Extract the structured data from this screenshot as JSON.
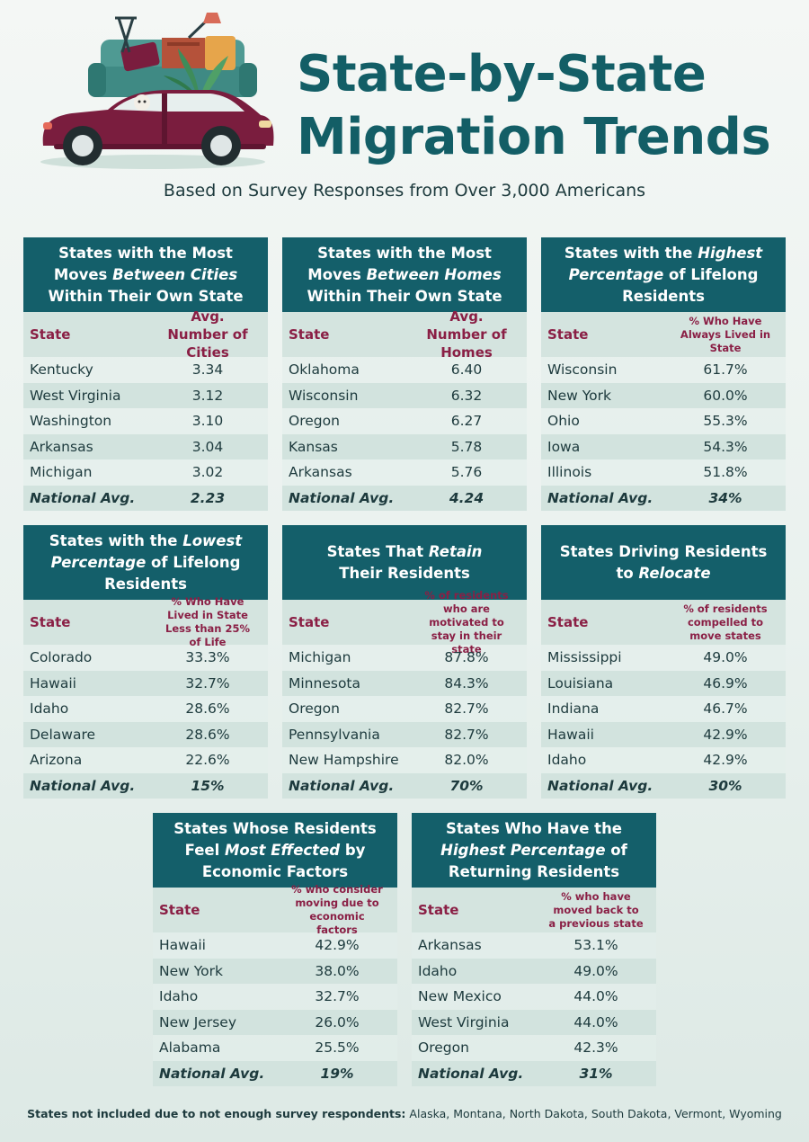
{
  "header": {
    "title_line1": "State-by-State",
    "title_line2": "Migration Trends",
    "subtitle": "Based on Survey Responses from Over 3,000 Americans"
  },
  "colors": {
    "teal": "#145f6a",
    "accent": "#8a1f45",
    "car": "#7a1d3e"
  },
  "tables": [
    {
      "title_parts": [
        [
          {
            "t": "States with the Most",
            "i": false
          }
        ],
        [
          {
            "t": "Moves ",
            "i": false
          },
          {
            "t": "Between Cities",
            "i": true
          }
        ],
        [
          {
            "t": "Within Their Own State",
            "i": false
          }
        ]
      ],
      "col_state": "State",
      "col_value": "Avg. Number of Cities",
      "col_value_small": false,
      "rows": [
        {
          "state": "Kentucky",
          "value": "3.34"
        },
        {
          "state": "West Virginia",
          "value": "3.12"
        },
        {
          "state": "Washington",
          "value": "3.10"
        },
        {
          "state": "Arkansas",
          "value": "3.04"
        },
        {
          "state": "Michigan",
          "value": "3.02"
        }
      ],
      "avg_label": "National Avg.",
      "avg_value": "2.23"
    },
    {
      "title_parts": [
        [
          {
            "t": "States with the Most",
            "i": false
          }
        ],
        [
          {
            "t": "Moves ",
            "i": false
          },
          {
            "t": "Between Homes",
            "i": true
          }
        ],
        [
          {
            "t": "Within Their Own State",
            "i": false
          }
        ]
      ],
      "col_state": "State",
      "col_value": "Avg. Number of Homes",
      "col_value_small": false,
      "rows": [
        {
          "state": "Oklahoma",
          "value": "6.40"
        },
        {
          "state": "Wisconsin",
          "value": "6.32"
        },
        {
          "state": "Oregon",
          "value": "6.27"
        },
        {
          "state": "Kansas",
          "value": "5.78"
        },
        {
          "state": "Arkansas",
          "value": "5.76"
        }
      ],
      "avg_label": "National Avg.",
      "avg_value": "4.24"
    },
    {
      "title_parts": [
        [
          {
            "t": "States with the ",
            "i": false
          },
          {
            "t": "Highest",
            "i": true
          }
        ],
        [
          {
            "t": "Percentage",
            "i": true
          },
          {
            "t": " of Lifelong",
            "i": false
          }
        ],
        [
          {
            "t": "Residents",
            "i": false
          }
        ]
      ],
      "col_state": "State",
      "col_value": "% Who Have Always Lived in State",
      "col_value_small": true,
      "rows": [
        {
          "state": "Wisconsin",
          "value": "61.7%"
        },
        {
          "state": "New York",
          "value": "60.0%"
        },
        {
          "state": "Ohio",
          "value": "55.3%"
        },
        {
          "state": "Iowa",
          "value": "54.3%"
        },
        {
          "state": "Illinois",
          "value": "51.8%"
        }
      ],
      "avg_label": "National Avg.",
      "avg_value": "34%"
    },
    {
      "title_parts": [
        [
          {
            "t": "States with the ",
            "i": false
          },
          {
            "t": "Lowest",
            "i": true
          }
        ],
        [
          {
            "t": "Percentage",
            "i": true
          },
          {
            "t": " of Lifelong",
            "i": false
          }
        ],
        [
          {
            "t": "Residents",
            "i": false
          }
        ]
      ],
      "col_state": "State",
      "col_value": "% Who Have Lived in State Less than 25% of Life",
      "col_value_small": true,
      "rows": [
        {
          "state": "Colorado",
          "value": "33.3%"
        },
        {
          "state": "Hawaii",
          "value": "32.7%"
        },
        {
          "state": "Idaho",
          "value": "28.6%"
        },
        {
          "state": "Delaware",
          "value": "28.6%"
        },
        {
          "state": "Arizona",
          "value": "22.6%"
        }
      ],
      "avg_label": "National Avg.",
      "avg_value": "15%"
    },
    {
      "title_parts": [
        [
          {
            "t": "States That ",
            "i": false
          },
          {
            "t": "Retain",
            "i": true
          }
        ],
        [
          {
            "t": "Their Residents",
            "i": false
          }
        ]
      ],
      "col_state": "State",
      "col_value": "% of residents who are motivated to stay in their state",
      "col_value_small": true,
      "rows": [
        {
          "state": "Michigan",
          "value": "87.8%"
        },
        {
          "state": "Minnesota",
          "value": "84.3%"
        },
        {
          "state": "Oregon",
          "value": "82.7%"
        },
        {
          "state": "Pennsylvania",
          "value": "82.7%"
        },
        {
          "state": "New Hampshire",
          "value": "82.0%"
        }
      ],
      "avg_label": "National Avg.",
      "avg_value": "70%"
    },
    {
      "title_parts": [
        [
          {
            "t": "States Driving Residents",
            "i": false
          }
        ],
        [
          {
            "t": "to ",
            "i": false
          },
          {
            "t": "Relocate",
            "i": true
          }
        ]
      ],
      "col_state": "State",
      "col_value": "% of residents compelled to move states",
      "col_value_small": true,
      "rows": [
        {
          "state": "Mississippi",
          "value": "49.0%"
        },
        {
          "state": "Louisiana",
          "value": "46.9%"
        },
        {
          "state": "Indiana",
          "value": "46.7%"
        },
        {
          "state": "Hawaii",
          "value": "42.9%"
        },
        {
          "state": "Idaho",
          "value": "42.9%"
        }
      ],
      "avg_label": "National Avg.",
      "avg_value": "30%"
    },
    {
      "title_parts": [
        [
          {
            "t": "States Whose Residents",
            "i": false
          }
        ],
        [
          {
            "t": "Feel ",
            "i": false
          },
          {
            "t": "Most Effected",
            "i": true
          },
          {
            "t": " by",
            "i": false
          }
        ],
        [
          {
            "t": "Economic Factors",
            "i": false
          }
        ]
      ],
      "col_state": "State",
      "col_value": "% who consider moving due to economic factors",
      "col_value_small": true,
      "rows": [
        {
          "state": "Hawaii",
          "value": "42.9%"
        },
        {
          "state": "New York",
          "value": "38.0%"
        },
        {
          "state": "Idaho",
          "value": "32.7%"
        },
        {
          "state": "New Jersey",
          "value": "26.0%"
        },
        {
          "state": "Alabama",
          "value": "25.5%"
        }
      ],
      "avg_label": "National Avg.",
      "avg_value": "19%"
    },
    {
      "title_parts": [
        [
          {
            "t": "States Who Have the",
            "i": false
          }
        ],
        [
          {
            "t": "Highest Percentage",
            "i": true
          },
          {
            "t": " of",
            "i": false
          }
        ],
        [
          {
            "t": "Returning Residents",
            "i": false
          }
        ]
      ],
      "col_state": "State",
      "col_value": "% who have moved back to a previous state",
      "col_value_small": true,
      "rows": [
        {
          "state": "Arkansas",
          "value": "53.1%"
        },
        {
          "state": "Idaho",
          "value": "49.0%"
        },
        {
          "state": "New Mexico",
          "value": "44.0%"
        },
        {
          "state": "West Virginia",
          "value": "44.0%"
        },
        {
          "state": "Oregon",
          "value": "42.3%"
        }
      ],
      "avg_label": "National Avg.",
      "avg_value": "31%"
    }
  ],
  "footnote": {
    "label": "States not included due to not enough survey respondents:",
    "text": "Alaska, Montana, North Dakota, South Dakota, Vermont, Wyoming"
  }
}
